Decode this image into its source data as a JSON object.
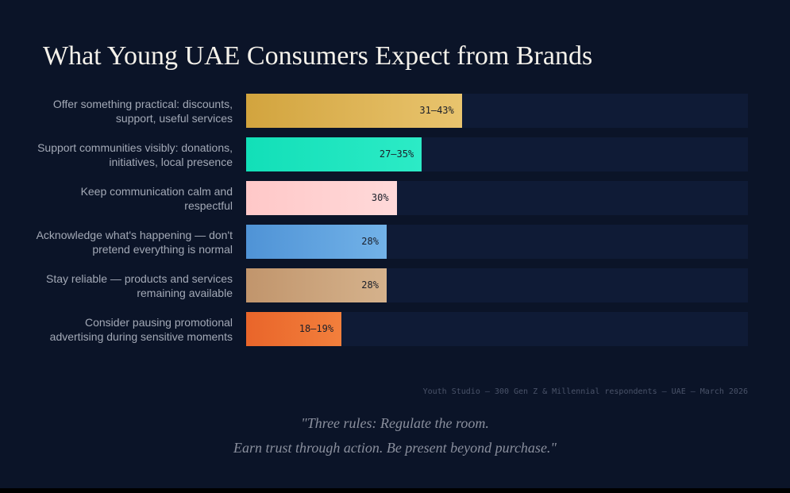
{
  "chart_data": {
    "type": "hbar",
    "title": "What Young UAE Consumers Expect from Brands",
    "categories": [
      "Offer something practical: discounts, support, useful services",
      "Support communities visibly: donations, initiatives, local presence",
      "Keep communication calm and respectful",
      "Acknowledge what's happening — don't pretend everything is normal",
      "Stay reliable — products and services remaining available",
      "Consider pausing promotional advertising during sensitive moments"
    ],
    "values": [
      43,
      35,
      30,
      28,
      28,
      19
    ],
    "value_labels": [
      "31–43%",
      "27–35%",
      "30%",
      "28%",
      "28%",
      "18–19%"
    ],
    "colors": [
      [
        "#d2a43e",
        "#e9c46e"
      ],
      [
        "#12dfb8",
        "#2cebc6"
      ],
      [
        "#ffc8c8",
        "#ffd9d9"
      ],
      [
        "#4f93d6",
        "#72b2e8"
      ],
      [
        "#c1956c",
        "#d5b28c"
      ],
      [
        "#e9652a",
        "#f27f3c"
      ]
    ],
    "xlim": [
      0,
      100
    ],
    "source": "Youth Studio — 300 Gen Z & Millennial respondents — UAE — March 2026",
    "quote": [
      "\"Three rules: Regulate the room.",
      "Earn trust through action. Be present beyond purchase.\""
    ]
  }
}
